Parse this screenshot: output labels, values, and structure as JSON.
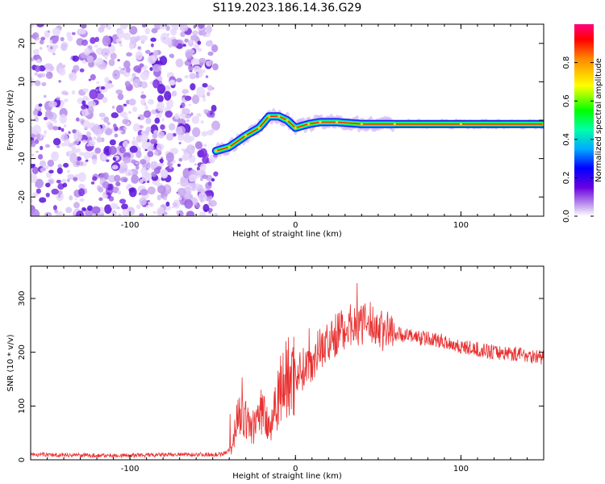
{
  "title": "S119.2023.186.14.36.G29",
  "colors": {
    "snr_line": "#e83030",
    "frame": "#000000"
  },
  "chart_data": [
    {
      "type": "heatmap",
      "xlabel": "Height of straight line (km)",
      "ylabel": "Frequency (Hz)",
      "xlim": [
        -160,
        150
      ],
      "ylim": [
        -25,
        25
      ],
      "xticks": [
        -100,
        0,
        100
      ],
      "yticks": [
        20,
        10,
        0,
        -10,
        -20
      ],
      "xtick_labels": [
        "-100",
        "0",
        "100"
      ],
      "ytick_labels": [
        "20",
        "10",
        "0",
        "-10",
        "-20"
      ],
      "colorbar": {
        "label": "Normalized spectral amplitude",
        "range": [
          0,
          1
        ],
        "ticks": [
          0.0,
          0.2,
          0.4,
          0.6,
          0.8
        ],
        "tick_labels": [
          "0.0",
          "0.2",
          "0.4",
          "0.6",
          "0.8"
        ],
        "colormap": "hsv-like (purple to red)"
      },
      "noise_region_x": [
        -160,
        -48
      ],
      "signal_track": [
        {
          "x": -48,
          "y": -8
        },
        {
          "x": -40,
          "y": -7
        },
        {
          "x": -30,
          "y": -4
        },
        {
          "x": -22,
          "y": -2
        },
        {
          "x": -16,
          "y": 1
        },
        {
          "x": -10,
          "y": 1
        },
        {
          "x": -5,
          "y": 0
        },
        {
          "x": 0,
          "y": -2
        },
        {
          "x": 8,
          "y": -1
        },
        {
          "x": 15,
          "y": -0.5
        },
        {
          "x": 25,
          "y": -0.5
        },
        {
          "x": 40,
          "y": -1
        },
        {
          "x": 60,
          "y": -1
        },
        {
          "x": 100,
          "y": -1
        },
        {
          "x": 150,
          "y": -1
        }
      ]
    },
    {
      "type": "line",
      "xlabel": "Height of straight line (km)",
      "ylabel": "SNR (10 * v/v)",
      "xlim": [
        -160,
        150
      ],
      "ylim": [
        0,
        360
      ],
      "xticks": [
        -100,
        0,
        100
      ],
      "yticks": [
        0,
        100,
        200,
        300
      ],
      "xtick_labels": [
        "-100",
        "0",
        "100"
      ],
      "ytick_labels": [
        "0",
        "100",
        "200",
        "300"
      ],
      "series": [
        {
          "x": [
            -160,
            -140,
            -120,
            -100,
            -80,
            -60,
            -45,
            -38,
            -35,
            -30,
            -25,
            -20,
            -15,
            -12,
            -10,
            -5,
            0,
            5,
            10,
            15,
            20,
            25,
            30,
            35,
            40,
            45,
            50,
            55,
            60,
            70,
            80,
            90,
            95,
            100,
            110,
            120,
            130,
            140,
            150
          ],
          "values": [
            10,
            9,
            8,
            8,
            9,
            10,
            10,
            20,
            95,
            70,
            60,
            95,
            60,
            110,
            130,
            150,
            160,
            170,
            185,
            210,
            215,
            235,
            245,
            255,
            250,
            255,
            245,
            240,
            235,
            230,
            225,
            220,
            215,
            210,
            205,
            200,
            198,
            195,
            190
          ]
        }
      ]
    }
  ]
}
